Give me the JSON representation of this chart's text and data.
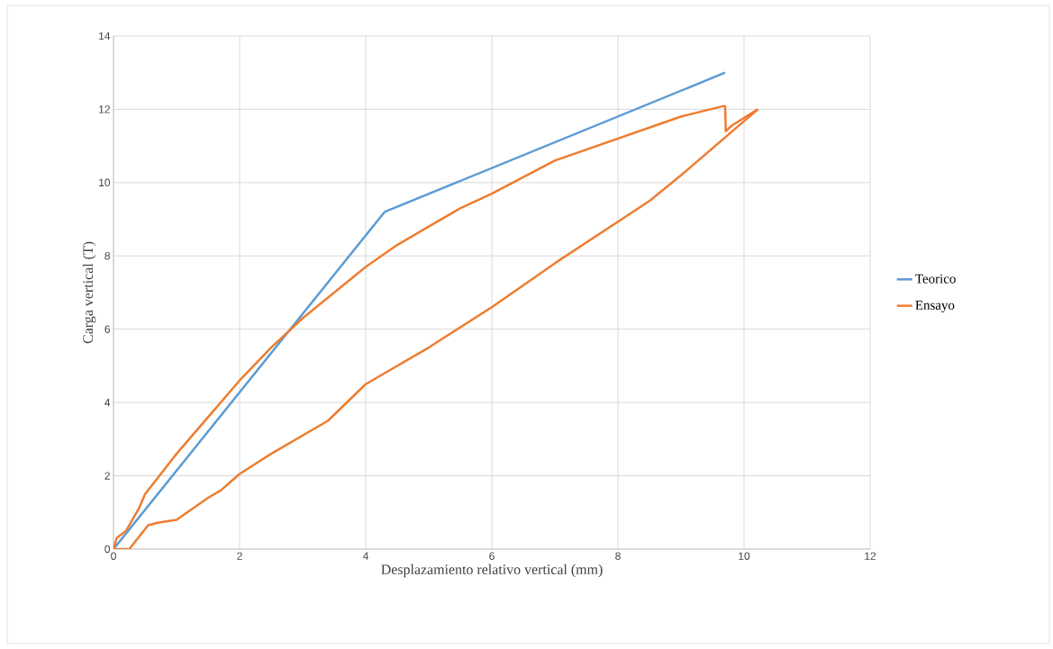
{
  "chart_data": {
    "type": "line",
    "xlabel": "Desplazamiento relativo vertical (mm)",
    "ylabel": "Carga vertical (T)",
    "xlim": [
      0,
      12
    ],
    "ylim": [
      0,
      14
    ],
    "xticks": [
      0,
      2,
      4,
      6,
      8,
      10,
      12
    ],
    "yticks": [
      0,
      2,
      4,
      6,
      8,
      10,
      12,
      14
    ],
    "grid": true,
    "legend": "right",
    "series": [
      {
        "name": "Teorico",
        "color": "#5b9bd5",
        "x": [
          0,
          4.3,
          9.7
        ],
        "values": [
          0,
          9.2,
          13
        ]
      },
      {
        "name": "Ensayo",
        "color": "#ed7d31",
        "x": [
          0,
          0.05,
          0.2,
          0.4,
          0.5,
          1,
          1.5,
          2,
          2.5,
          3,
          3.5,
          4,
          4.5,
          5,
          5.5,
          6,
          7,
          8,
          9,
          9.7
        ],
        "values": [
          0,
          0.3,
          0.5,
          1.1,
          1.5,
          2.6,
          3.6,
          4.6,
          5.5,
          6.3,
          7,
          7.7,
          8.3,
          8.8,
          9.3,
          9.7,
          10.6,
          11.2,
          11.8,
          12.1
        ]
      },
      {
        "color": "#ed7d31",
        "x": [
          9.7,
          9.71,
          9.8,
          10.22
        ],
        "values": [
          12.1,
          11.4,
          11.55,
          12.0
        ]
      },
      {
        "color": "#ed7d31",
        "x": [
          0,
          0.25,
          0.55,
          0.7,
          1,
          1.5,
          1.7,
          2,
          2.5,
          3.4,
          4,
          5,
          6,
          7,
          8.5,
          9,
          10.22
        ],
        "values": [
          0,
          0,
          0.65,
          0.72,
          0.8,
          1.4,
          1.6,
          2.05,
          2.6,
          3.5,
          4.5,
          5.5,
          6.6,
          7.8,
          9.5,
          10.2,
          12.0
        ]
      }
    ]
  }
}
